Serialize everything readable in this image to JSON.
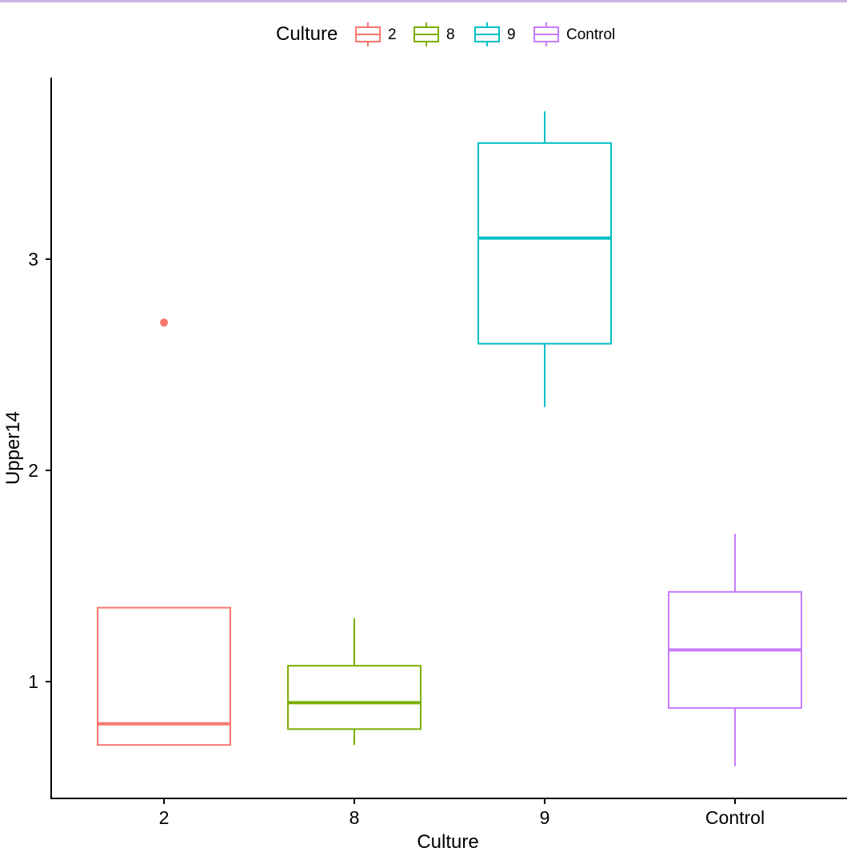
{
  "chart_data": {
    "type": "box",
    "xlabel": "Culture",
    "ylabel": "Upper14",
    "legend": {
      "title": "Culture",
      "placement": "top",
      "items": [
        "2",
        "8",
        "9",
        "Control"
      ]
    },
    "categories": [
      "2",
      "8",
      "9",
      "Control"
    ],
    "colors": {
      "2": "#F8766D",
      "8": "#7CAE00",
      "9": "#00BFC4",
      "Control": "#C77CFF"
    },
    "boxes": [
      {
        "category": "2",
        "whisker_low": 0.7,
        "q1": 0.7,
        "median": 0.8,
        "q3": 1.35,
        "whisker_high": 1.35,
        "outliers": [
          2.7
        ]
      },
      {
        "category": "8",
        "whisker_low": 0.7,
        "q1": 0.775,
        "median": 0.9,
        "q3": 1.075,
        "whisker_high": 1.3,
        "outliers": []
      },
      {
        "category": "9",
        "whisker_low": 2.3,
        "q1": 2.6,
        "median": 3.1,
        "q3": 3.55,
        "whisker_high": 3.7,
        "outliers": []
      },
      {
        "category": "Control",
        "whisker_low": 0.6,
        "q1": 0.875,
        "median": 1.15,
        "q3": 1.425,
        "whisker_high": 1.7,
        "outliers": []
      }
    ],
    "yticks": [
      1,
      2,
      3
    ],
    "ylim": [
      0.5,
      4.0
    ],
    "grid": false
  }
}
